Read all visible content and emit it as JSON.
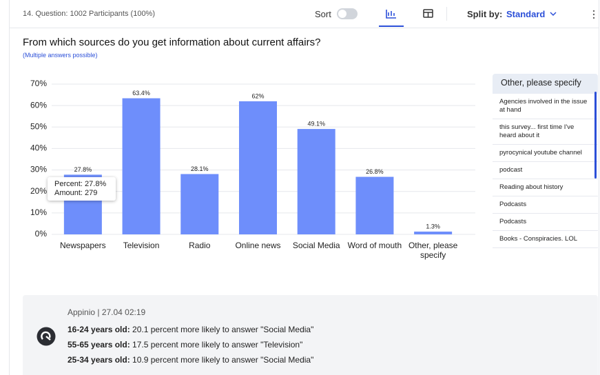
{
  "header": {
    "question": "14. Question: 1002 Participants (100%)",
    "sort": "Sort",
    "split_label": "Split by:",
    "split_value": "Standard"
  },
  "chart_data": {
    "type": "bar",
    "title": "From which sources do you get information about current affairs?",
    "subtitle": "(Multiple answers possible)",
    "categories": [
      "Newspapers",
      "Television",
      "Radio",
      "Online news",
      "Social Media",
      "Word of mouth",
      "Other, please specify"
    ],
    "values": [
      27.8,
      63.4,
      28.1,
      62,
      49.1,
      26.8,
      1.3
    ],
    "value_labels": [
      "27.8%",
      "63.4%",
      "28.1%",
      "62%",
      "49.1%",
      "26.8%",
      "1.3%"
    ],
    "color": "#6e8efb",
    "ylim": [
      0,
      70
    ],
    "yticks": [
      {
        "value": 0,
        "label": "0%"
      },
      {
        "value": 10,
        "label": "10%"
      },
      {
        "value": 20,
        "label": "20%"
      },
      {
        "value": 30,
        "label": "30%"
      },
      {
        "value": 40,
        "label": "40%"
      },
      {
        "value": 50,
        "label": "50%"
      },
      {
        "value": 60,
        "label": "60%"
      },
      {
        "value": 70,
        "label": "70%"
      }
    ],
    "grid": true,
    "tooltip": [
      "Percent: 27.8%",
      "Amount: 279"
    ]
  },
  "side_panel": {
    "title": "Other, please specify",
    "items": [
      "Agencies involved in the issue at hand",
      "this survey... first time I've heard about it",
      "pyrocynical youtube channel",
      "podcast",
      "Reading about history",
      "Podcasts",
      "Podcasts",
      "Books - Conspiracies. LOL"
    ]
  },
  "insight": {
    "source": "Appinio | 27.04 02:19",
    "lines": [
      {
        "group": "16-24 years old:",
        "text": " 20.1 percent more likely to answer \"Social Media\""
      },
      {
        "group": "55-65 years old:",
        "text": " 17.5 percent more likely to answer \"Television\""
      },
      {
        "group": "25-34 years old:",
        "text": " 10.9 percent more likely to answer \"Social Media\""
      }
    ]
  }
}
